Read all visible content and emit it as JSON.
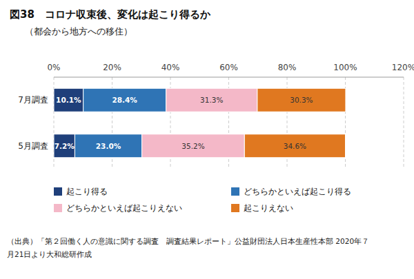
{
  "chart_data": {
    "type": "bar",
    "orientation": "horizontal",
    "stacked": true,
    "title": "図38　コロナ収束後、変化は起こり得るか",
    "subtitle": "（都会から地方への移住）",
    "categories": [
      "7月調査",
      "5月調査"
    ],
    "series": [
      {
        "name": "起こり得る",
        "color": "#1f3f7a",
        "values": [
          10.1,
          7.2
        ],
        "value_labels": [
          "10.1%",
          "7.2%"
        ]
      },
      {
        "name": "どちらかといえば起こり得る",
        "color": "#2f74b5",
        "values": [
          28.4,
          23.0
        ],
        "value_labels": [
          "28.4%",
          "23.0%"
        ]
      },
      {
        "name": "どちらかといえば起こりえない",
        "color": "#f4b8c8",
        "values": [
          31.3,
          35.2
        ],
        "value_labels": [
          "31.3%",
          "35.2%"
        ]
      },
      {
        "name": "起こりえない",
        "color": "#e07820",
        "values": [
          30.3,
          34.6
        ],
        "value_labels": [
          "30.3%",
          "34.6%"
        ]
      }
    ],
    "xlim": [
      0,
      120
    ],
    "xticks": [
      {
        "value": 0,
        "label": "0%"
      },
      {
        "value": 20,
        "label": "20%"
      },
      {
        "value": 40,
        "label": "40%"
      },
      {
        "value": 60,
        "label": "60%"
      },
      {
        "value": 80,
        "label": "80%"
      },
      {
        "value": 100,
        "label": "100%"
      },
      {
        "value": 120,
        "label": "120%"
      }
    ],
    "grid": true,
    "legend": "bottom",
    "data_labels": true,
    "annotations": [
      "（出典）「第２回働く人の意識に関する調査　調査結果レポート」公益財団法人日本生産性本部 2020年７",
      "月21日より大和総研作成"
    ]
  }
}
